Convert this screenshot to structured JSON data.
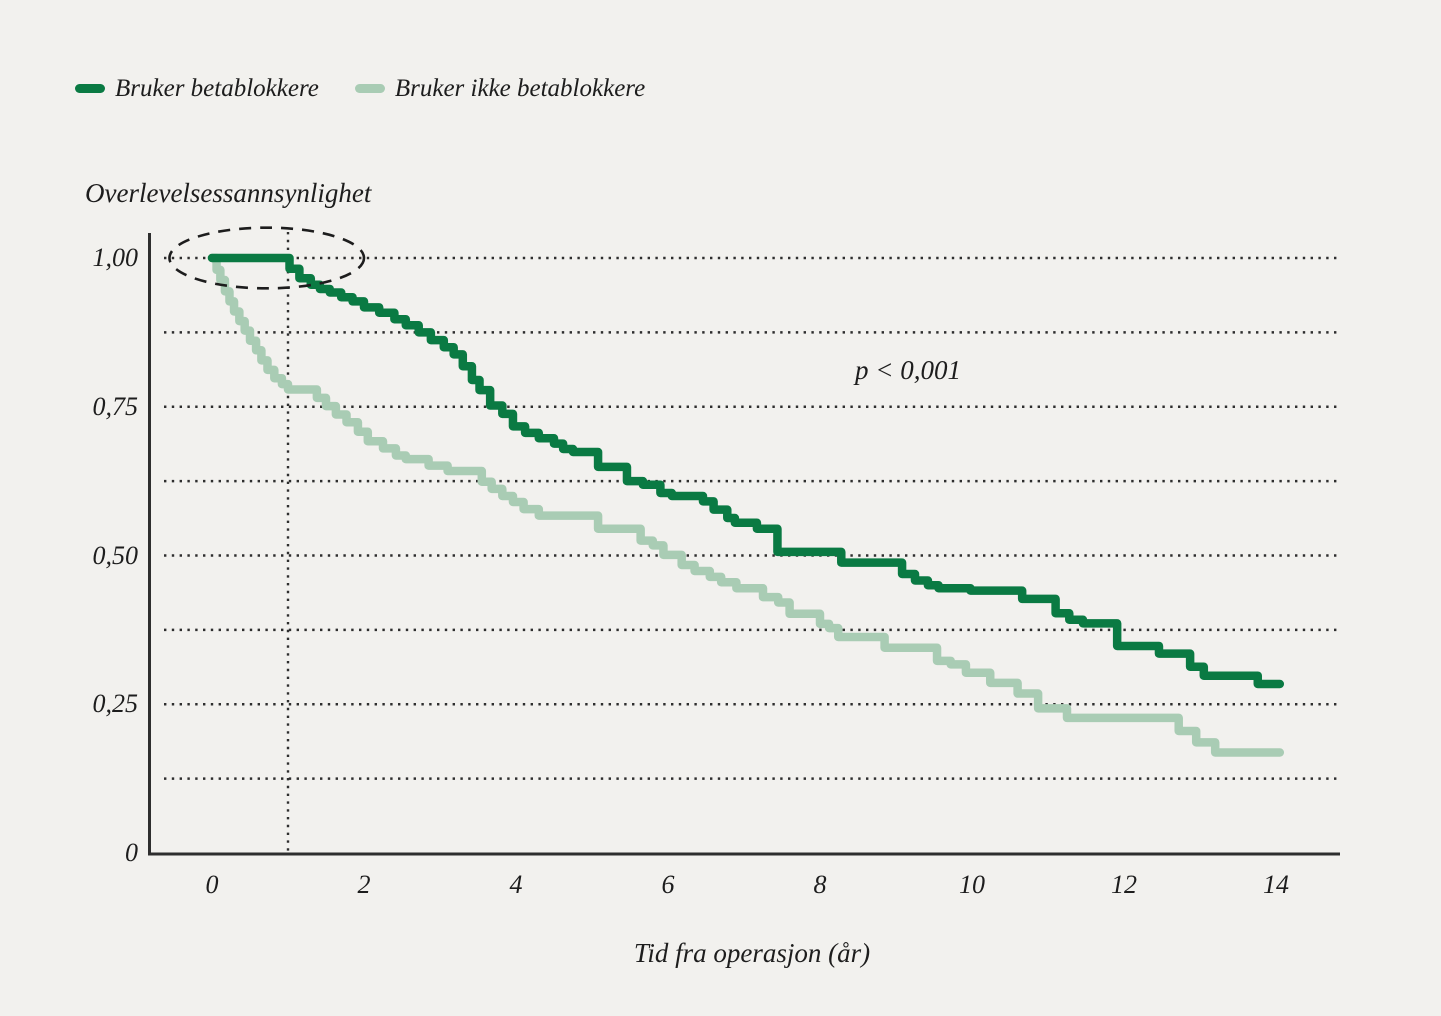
{
  "figure_title": "",
  "legend": {
    "items": [
      {
        "label": "Bruker betablokkere",
        "color": "#0a7a43"
      },
      {
        "label": "Bruker ikke betablokkere",
        "color": "#a9ccb4"
      }
    ]
  },
  "annotation": {
    "p_value": "p < 0,001"
  },
  "colors": {
    "background": "#f2f1ee",
    "axis": "#2e2e2e",
    "text": "#1d1d1d",
    "series_dark": "#0a7a43",
    "series_light": "#a9ccb4"
  },
  "chart_data": {
    "type": "line",
    "subtype": "kaplan-meier-step-survival",
    "title": "",
    "ylabel": "Overlevelsessannsynlighet",
    "xlabel": "Tid fra operasjon (år)",
    "xlim": [
      0,
      14.85
    ],
    "ylim": [
      0,
      1
    ],
    "grid": "dotted-horizontal",
    "gridlines_y": [
      1.0,
      0.875,
      0.75,
      0.625,
      0.5,
      0.375,
      0.25,
      0.125
    ],
    "vertical_guide_x": 1,
    "legend_position": "top-left",
    "x_ticks": [
      {
        "value": 0,
        "label": "0"
      },
      {
        "value": 2,
        "label": "2"
      },
      {
        "value": 4,
        "label": "4"
      },
      {
        "value": 6,
        "label": "6"
      },
      {
        "value": 8,
        "label": "8"
      },
      {
        "value": 10,
        "label": "10"
      },
      {
        "value": 12,
        "label": "12"
      },
      {
        "value": 14,
        "label": "14"
      }
    ],
    "y_ticks": [
      {
        "value": 1.0,
        "label": "1,00"
      },
      {
        "value": 0.75,
        "label": "0,75"
      },
      {
        "value": 0.5,
        "label": "0,50"
      },
      {
        "value": 0.25,
        "label": "0,25"
      },
      {
        "value": 0,
        "label": "0"
      }
    ],
    "annotations": {
      "p_value": "p < 0,001",
      "highlight_ellipse": {
        "t_center": 0.72,
        "s_center": 1.0,
        "t_radius": 1.28,
        "s_radius": 0.051
      }
    },
    "t_end": 14.05,
    "series": [
      {
        "name": "Bruker betablokkere",
        "color": "#0a7a43",
        "points": [
          [
            0,
            1.0
          ],
          [
            1.02,
            0.982
          ],
          [
            1.15,
            0.966
          ],
          [
            1.3,
            0.955
          ],
          [
            1.42,
            0.948
          ],
          [
            1.55,
            0.942
          ],
          [
            1.7,
            0.934
          ],
          [
            1.85,
            0.927
          ],
          [
            2.0,
            0.917
          ],
          [
            2.2,
            0.908
          ],
          [
            2.4,
            0.897
          ],
          [
            2.55,
            0.887
          ],
          [
            2.72,
            0.875
          ],
          [
            2.88,
            0.862
          ],
          [
            3.05,
            0.85
          ],
          [
            3.18,
            0.838
          ],
          [
            3.3,
            0.818
          ],
          [
            3.42,
            0.795
          ],
          [
            3.52,
            0.778
          ],
          [
            3.66,
            0.752
          ],
          [
            3.82,
            0.738
          ],
          [
            3.96,
            0.717
          ],
          [
            4.12,
            0.706
          ],
          [
            4.3,
            0.697
          ],
          [
            4.5,
            0.688
          ],
          [
            4.62,
            0.679
          ],
          [
            4.75,
            0.674
          ],
          [
            5.08,
            0.649
          ],
          [
            5.46,
            0.625
          ],
          [
            5.67,
            0.619
          ],
          [
            5.9,
            0.605
          ],
          [
            6.05,
            0.6
          ],
          [
            6.46,
            0.591
          ],
          [
            6.6,
            0.577
          ],
          [
            6.78,
            0.563
          ],
          [
            6.88,
            0.555
          ],
          [
            7.17,
            0.545
          ],
          [
            7.44,
            0.506
          ],
          [
            8.28,
            0.488
          ],
          [
            9.08,
            0.469
          ],
          [
            9.25,
            0.458
          ],
          [
            9.42,
            0.45
          ],
          [
            9.56,
            0.445
          ],
          [
            9.98,
            0.441
          ],
          [
            10.66,
            0.427
          ],
          [
            11.1,
            0.403
          ],
          [
            11.28,
            0.392
          ],
          [
            11.46,
            0.386
          ],
          [
            11.91,
            0.348
          ],
          [
            12.46,
            0.335
          ],
          [
            12.87,
            0.313
          ],
          [
            13.05,
            0.298
          ],
          [
            13.76,
            0.284
          ]
        ]
      },
      {
        "name": "Bruker ikke betablokkere",
        "color": "#a9ccb4",
        "points": [
          [
            0,
            1.0
          ],
          [
            0.06,
            0.98
          ],
          [
            0.11,
            0.963
          ],
          [
            0.17,
            0.944
          ],
          [
            0.23,
            0.927
          ],
          [
            0.29,
            0.91
          ],
          [
            0.36,
            0.894
          ],
          [
            0.43,
            0.878
          ],
          [
            0.5,
            0.861
          ],
          [
            0.58,
            0.845
          ],
          [
            0.65,
            0.828
          ],
          [
            0.73,
            0.812
          ],
          [
            0.82,
            0.798
          ],
          [
            0.92,
            0.788
          ],
          [
            1.0,
            0.779
          ],
          [
            1.38,
            0.765
          ],
          [
            1.5,
            0.751
          ],
          [
            1.63,
            0.737
          ],
          [
            1.77,
            0.724
          ],
          [
            1.92,
            0.708
          ],
          [
            2.05,
            0.692
          ],
          [
            2.25,
            0.68
          ],
          [
            2.42,
            0.668
          ],
          [
            2.55,
            0.662
          ],
          [
            2.85,
            0.651
          ],
          [
            3.1,
            0.642
          ],
          [
            3.55,
            0.624
          ],
          [
            3.68,
            0.612
          ],
          [
            3.82,
            0.6
          ],
          [
            3.96,
            0.59
          ],
          [
            4.1,
            0.578
          ],
          [
            4.3,
            0.567
          ],
          [
            5.08,
            0.545
          ],
          [
            5.64,
            0.525
          ],
          [
            5.8,
            0.517
          ],
          [
            5.94,
            0.501
          ],
          [
            6.18,
            0.484
          ],
          [
            6.35,
            0.474
          ],
          [
            6.55,
            0.464
          ],
          [
            6.7,
            0.455
          ],
          [
            6.9,
            0.445
          ],
          [
            7.25,
            0.43
          ],
          [
            7.45,
            0.421
          ],
          [
            7.6,
            0.402
          ],
          [
            8.0,
            0.385
          ],
          [
            8.12,
            0.378
          ],
          [
            8.24,
            0.363
          ],
          [
            8.85,
            0.345
          ],
          [
            9.54,
            0.323
          ],
          [
            9.72,
            0.317
          ],
          [
            9.92,
            0.303
          ],
          [
            10.24,
            0.286
          ],
          [
            10.6,
            0.268
          ],
          [
            10.87,
            0.243
          ],
          [
            11.25,
            0.227
          ],
          [
            12.72,
            0.205
          ],
          [
            12.95,
            0.186
          ],
          [
            13.2,
            0.169
          ]
        ]
      }
    ]
  }
}
